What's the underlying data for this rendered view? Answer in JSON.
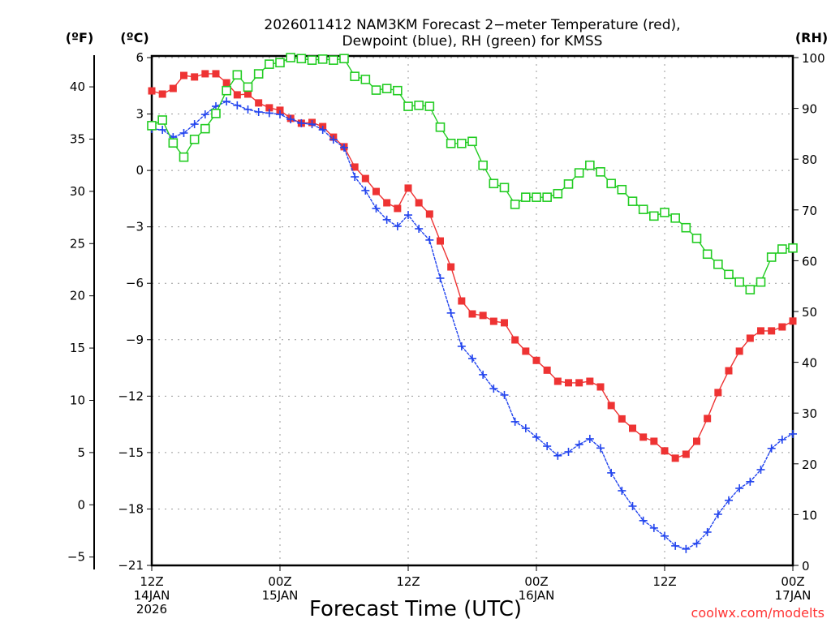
{
  "chart_data": {
    "type": "line",
    "title_line1": "2026011412 NAM3KM Forecast 2−meter Temperature (red),",
    "title_line2": "Dewpoint (blue), RH (green) for KMSS",
    "xlabel": "Forecast Time (UTC)",
    "credit": "coolwx.com/modelts",
    "unit_labels": {
      "fahrenheit": "(ºF)",
      "celsius": "(ºC)",
      "rh": "(RH)"
    },
    "x_hours_range": [
      0,
      60
    ],
    "x_ticks": [
      {
        "hour": 0,
        "line1": "12Z",
        "line2": "14JAN",
        "line3": "2026"
      },
      {
        "hour": 12,
        "line1": "00Z",
        "line2": "15JAN",
        "line3": ""
      },
      {
        "hour": 24,
        "line1": "12Z",
        "line2": "",
        "line3": ""
      },
      {
        "hour": 36,
        "line1": "00Z",
        "line2": "16JAN",
        "line3": ""
      },
      {
        "hour": 48,
        "line1": "12Z",
        "line2": "",
        "line3": ""
      },
      {
        "hour": 60,
        "line1": "00Z",
        "line2": "17JAN",
        "line3": ""
      }
    ],
    "celsius_axis": {
      "range": [
        -21,
        6
      ],
      "ticks": [
        6,
        3,
        0,
        -3,
        -6,
        -9,
        -12,
        -15,
        -18,
        -21
      ]
    },
    "fahrenheit_axis": {
      "ticks": [
        40,
        35,
        30,
        25,
        20,
        15,
        10,
        5,
        0,
        -5
      ]
    },
    "rh_axis": {
      "range": [
        0,
        100
      ],
      "ticks": [
        100,
        90,
        80,
        70,
        60,
        50,
        40,
        30,
        20,
        10,
        0
      ]
    },
    "grid": true,
    "series": [
      {
        "name": "Temperature",
        "units": "C",
        "color": "#ee3333",
        "marker": "filled-square",
        "values": [
          4.23,
          4.06,
          4.36,
          5.05,
          4.97,
          5.14,
          5.14,
          4.66,
          4.02,
          4.06,
          3.59,
          3.33,
          3.2,
          2.77,
          2.51,
          2.55,
          2.33,
          1.77,
          1.26,
          0.18,
          -0.43,
          -1.12,
          -1.72,
          -2.02,
          -0.94,
          -1.72,
          -2.32,
          -3.75,
          -5.13,
          -6.94,
          -7.63,
          -7.71,
          -8.02,
          -8.1,
          -9.01,
          -9.61,
          -10.1,
          -10.62,
          -11.21,
          -11.29,
          -11.29,
          -11.21,
          -11.51,
          -12.5,
          -13.21,
          -13.71,
          -14.18,
          -14.4,
          -14.91,
          -15.3,
          -15.09,
          -14.4,
          -13.19,
          -11.81,
          -10.65,
          -9.61,
          -8.92,
          -8.53,
          -8.53,
          -8.32,
          -8.01
        ]
      },
      {
        "name": "Dewpoint",
        "units": "C",
        "color": "#2244ee",
        "marker": "plus",
        "values": [
          2.21,
          2.16,
          1.77,
          1.99,
          2.46,
          2.98,
          3.41,
          3.67,
          3.46,
          3.24,
          3.11,
          3.05,
          2.98,
          2.72,
          2.51,
          2.46,
          2.16,
          1.64,
          1.21,
          -0.34,
          -1.07,
          -2.02,
          -2.62,
          -2.97,
          -2.37,
          -3.1,
          -3.7,
          -5.73,
          -7.58,
          -9.35,
          -10.0,
          -10.86,
          -11.6,
          -11.94,
          -13.36,
          -13.71,
          -14.18,
          -14.66,
          -15.17,
          -14.96,
          -14.57,
          -14.27,
          -14.76,
          -16.08,
          -17.03,
          -17.85,
          -18.62,
          -19.01,
          -19.44,
          -19.96,
          -20.13,
          -19.83,
          -19.23,
          -18.28,
          -17.54,
          -16.9,
          -16.55,
          -15.91,
          -14.78,
          -14.31,
          -14.01
        ]
      },
      {
        "name": "RH",
        "units": "%",
        "color": "#22cc22",
        "marker": "open-square",
        "values": [
          86.6,
          87.7,
          83.2,
          80.4,
          83.9,
          86.0,
          89.0,
          93.5,
          96.6,
          94.2,
          96.8,
          98.7,
          99.0,
          100,
          99.8,
          99.5,
          99.7,
          99.5,
          99.8,
          96.3,
          95.7,
          93.6,
          93.9,
          93.5,
          90.4,
          90.6,
          90.4,
          86.3,
          83.1,
          83.1,
          83.5,
          78.8,
          75.2,
          74.4,
          71.1,
          72.5,
          72.5,
          72.5,
          73.2,
          75.1,
          77.3,
          78.8,
          77.5,
          75.2,
          74.0,
          71.7,
          70.1,
          68.8,
          69.5,
          68.4,
          66.5,
          64.4,
          61.3,
          59.3,
          57.3,
          55.8,
          54.3,
          55.8,
          60.7,
          62.3,
          62.5
        ]
      }
    ]
  }
}
